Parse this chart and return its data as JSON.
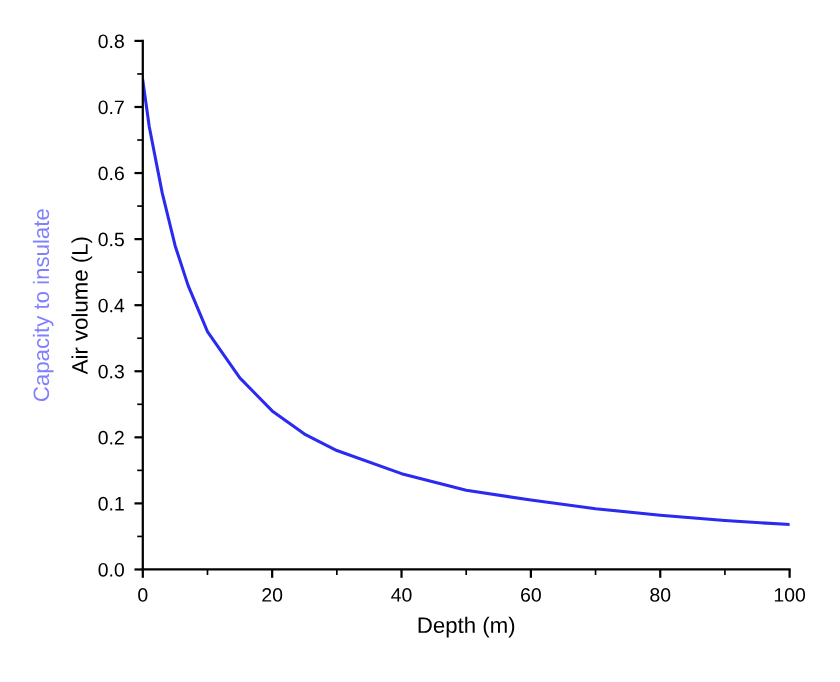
{
  "chart_data": {
    "type": "line",
    "xlabel": "Depth (m)",
    "ylabel": "Air volume (L)",
    "annotations": [
      "Capacity to insulate"
    ],
    "x": [
      0,
      1,
      2,
      3,
      5,
      7,
      10,
      15,
      20,
      25,
      30,
      40,
      50,
      60,
      70,
      80,
      90,
      100
    ],
    "series": [
      {
        "color": "#2b2bf0",
        "values": [
          0.74,
          0.67,
          0.62,
          0.57,
          0.49,
          0.43,
          0.36,
          0.29,
          0.24,
          0.205,
          0.18,
          0.145,
          0.12,
          0.105,
          0.092,
          0.082,
          0.074,
          0.068
        ]
      }
    ],
    "xlim": [
      0,
      100
    ],
    "xticks": [
      0,
      20,
      40,
      60,
      80,
      100
    ],
    "ylim": [
      0,
      0.8
    ],
    "yticks": [
      {
        "value": 0,
        "label": "0.0"
      },
      0.1,
      0.2,
      0.3,
      0.4,
      0.5,
      0.6,
      0.7,
      0.8
    ],
    "grid": false,
    "legend": false,
    "marker": "none",
    "line_style": "solid"
  }
}
